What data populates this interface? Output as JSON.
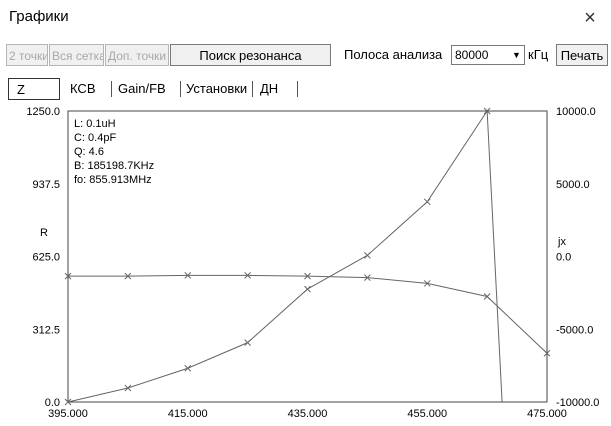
{
  "window": {
    "title": "Графики",
    "close_symbol": "×"
  },
  "toolbar": {
    "two_points": "2 точки",
    "full_grid": "Вся сетка",
    "extra_points": "Доп. точки",
    "resonance_search": "Поиск резонанса",
    "band_label": "Полоса анализа",
    "band_value": "80000",
    "band_unit": "кГц",
    "print": "Печать"
  },
  "tabs": [
    {
      "label": "Z",
      "selected": true
    },
    {
      "label": "КСВ",
      "selected": false
    },
    {
      "label": "Gain/FB",
      "selected": false
    },
    {
      "label": "Установки",
      "selected": false
    },
    {
      "label": "ДН",
      "selected": false
    }
  ],
  "info": {
    "L": "L: 0.1uH",
    "C": "C: 0.4pF",
    "Q": "Q: 4.6",
    "B": "B: 185198.7KHz",
    "fo": "fo: 855.913MHz"
  },
  "chart_data": {
    "type": "line",
    "xlim": [
      395,
      475
    ],
    "x_ticks": [
      "395.000",
      "415.000",
      "435.000",
      "455.000",
      "475.000"
    ],
    "y_left_label": "R",
    "y_left_lim": [
      0,
      1250
    ],
    "y_left_ticks": [
      "0.0",
      "312.5",
      "625.0",
      "937.5",
      "1250.0"
    ],
    "y_right_label": "jx",
    "y_right_lim": [
      -10000,
      10000
    ],
    "y_right_ticks": [
      "-10000.0",
      "-5000.0",
      "0.0",
      "5000.0",
      "10000.0"
    ],
    "series": [
      {
        "axis": "left",
        "points": [
          [
            395,
            0
          ],
          [
            405,
            60
          ],
          [
            415,
            145
          ],
          [
            425,
            255
          ],
          [
            435,
            485
          ],
          [
            445,
            630
          ],
          [
            455,
            860
          ],
          [
            465,
            1250
          ],
          [
            467.5,
            -50
          ]
        ]
      },
      {
        "axis": "right",
        "points": [
          [
            395,
            -1350
          ],
          [
            405,
            -1350
          ],
          [
            415,
            -1300
          ],
          [
            425,
            -1300
          ],
          [
            435,
            -1350
          ],
          [
            445,
            -1450
          ],
          [
            455,
            -1850
          ],
          [
            465,
            -2750
          ],
          [
            475,
            -6650
          ]
        ]
      }
    ],
    "line_color": "#666666",
    "marker": "x",
    "grid": false
  }
}
